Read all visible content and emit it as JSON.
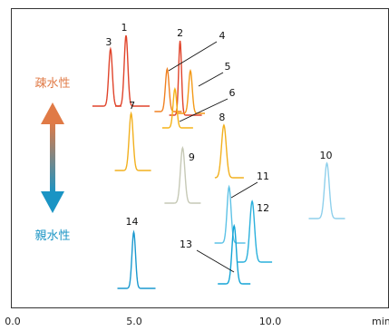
{
  "chart_data": {
    "type": "line",
    "title": "",
    "xlabel": "min",
    "ylabel": "",
    "xlim": [
      0,
      12.3
    ],
    "x_ticks": [
      "0.0",
      "5.0",
      "10.0"
    ],
    "grid": false,
    "annotation_top": "疎水性",
    "annotation_bottom": "親水性",
    "peaks": [
      {
        "label": "1",
        "rt": 4.4,
        "color": "#e0442b"
      },
      {
        "label": "2",
        "rt": 6.5,
        "color": "#e0442b"
      },
      {
        "label": "3",
        "rt": 3.8,
        "color": "#e0442b"
      },
      {
        "label": "4",
        "rt": 6.0,
        "color": "#f08020"
      },
      {
        "label": "5",
        "rt": 6.9,
        "color": "#f39a18"
      },
      {
        "label": "6",
        "rt": 6.3,
        "color": "#f5b318"
      },
      {
        "label": "7",
        "rt": 4.6,
        "color": "#f2b01e"
      },
      {
        "label": "8",
        "rt": 8.2,
        "color": "#f2b01e"
      },
      {
        "label": "9",
        "rt": 6.6,
        "color": "#c6c9b6"
      },
      {
        "label": "10",
        "rt": 12.2,
        "color": "#8fd0ec"
      },
      {
        "label": "11",
        "rt": 8.4,
        "color": "#5dc2e6"
      },
      {
        "label": "12",
        "rt": 9.3,
        "color": "#2ab0dc"
      },
      {
        "label": "13",
        "rt": 8.6,
        "color": "#14a4d6"
      },
      {
        "label": "14",
        "rt": 4.7,
        "color": "#1b99cf"
      }
    ]
  }
}
